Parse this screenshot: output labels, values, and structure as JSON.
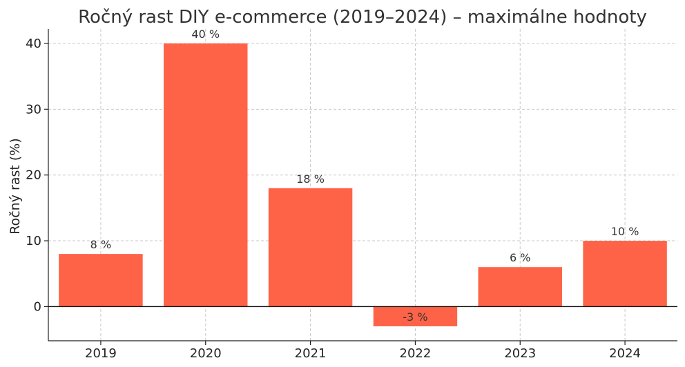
{
  "chart_data": {
    "type": "bar",
    "title": "Ročný rast DIY e-commerce (2019–2024) – maximálne hodnoty",
    "xlabel": "",
    "ylabel": "Ročný rast (%)",
    "categories": [
      "2019",
      "2020",
      "2021",
      "2022",
      "2023",
      "2024"
    ],
    "values": [
      8,
      40,
      18,
      -3,
      6,
      10
    ],
    "data_labels": [
      "8 %",
      "40 %",
      "18 %",
      "-3 %",
      "6 %",
      "10 %"
    ],
    "ylim": [
      -5.2,
      42.2
    ],
    "yticks": [
      0,
      10,
      20,
      30,
      40
    ],
    "grid": true,
    "bar_color": "#FF6347"
  }
}
